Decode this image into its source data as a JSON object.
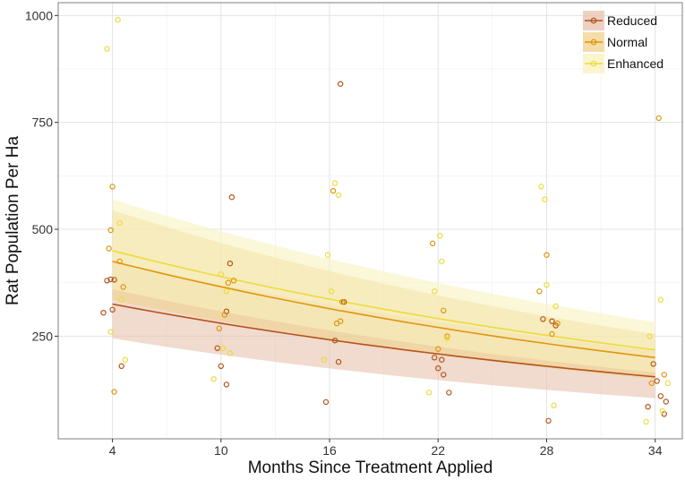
{
  "chart_data": {
    "type": "scatter",
    "title": "",
    "xlabel": "Months Since Treatment Applied",
    "ylabel": "Rat Population Per Ha",
    "xlim": [
      1,
      35.5
    ],
    "ylim": [
      10,
      1030
    ],
    "x_ticks": [
      4,
      10,
      16,
      22,
      28,
      34
    ],
    "x_tick_labels": [
      "4",
      "10",
      "16",
      "22",
      "28",
      "34"
    ],
    "y_ticks": [
      250,
      500,
      750,
      1000
    ],
    "y_tick_labels": [
      "250",
      "500",
      "750",
      "1000"
    ],
    "grid": true,
    "legend_position": "top-right",
    "series": [
      {
        "name": "Reduced",
        "color": "#b5541a",
        "band_color": "#e8c2ae",
        "fit_x": [
          4,
          34
        ],
        "fit_y": [
          325,
          155
        ],
        "band_lower": [
          245,
          105
        ],
        "band_upper": [
          425,
          215
        ],
        "points": [
          [
            3.5,
            305
          ],
          [
            3.7,
            380
          ],
          [
            3.9,
            383
          ],
          [
            4.1,
            382
          ],
          [
            4.0,
            312
          ],
          [
            4.5,
            180
          ],
          [
            9.8,
            222
          ],
          [
            10.0,
            180
          ],
          [
            10.3,
            137
          ],
          [
            10.3,
            308
          ],
          [
            10.5,
            420
          ],
          [
            10.6,
            575
          ],
          [
            15.8,
            96
          ],
          [
            16.3,
            240
          ],
          [
            16.5,
            190
          ],
          [
            16.6,
            840
          ],
          [
            16.8,
            330
          ],
          [
            21.8,
            200
          ],
          [
            22.0,
            175
          ],
          [
            22.2,
            195
          ],
          [
            22.3,
            160
          ],
          [
            22.6,
            118
          ],
          [
            27.8,
            290
          ],
          [
            28.1,
            52
          ],
          [
            28.3,
            285
          ],
          [
            28.5,
            275
          ],
          [
            33.6,
            85
          ],
          [
            33.9,
            185
          ],
          [
            34.1,
            145
          ],
          [
            34.3,
            110
          ],
          [
            34.5,
            68
          ],
          [
            34.6,
            97
          ]
        ]
      },
      {
        "name": "Normal",
        "color": "#e0960e",
        "band_color": "#f0d28c",
        "fit_x": [
          4,
          34
        ],
        "fit_y": [
          425,
          200
        ],
        "band_lower": [
          335,
          150
        ],
        "band_upper": [
          545,
          255
        ],
        "points": [
          [
            3.8,
            455
          ],
          [
            3.9,
            498
          ],
          [
            4.0,
            600
          ],
          [
            4.1,
            120
          ],
          [
            4.4,
            425
          ],
          [
            4.6,
            365
          ],
          [
            9.9,
            268
          ],
          [
            10.2,
            300
          ],
          [
            10.4,
            375
          ],
          [
            10.7,
            380
          ],
          [
            16.2,
            590
          ],
          [
            16.4,
            280
          ],
          [
            16.6,
            285
          ],
          [
            16.7,
            330
          ],
          [
            21.7,
            467
          ],
          [
            22.0,
            220
          ],
          [
            22.3,
            310
          ],
          [
            22.5,
            250
          ],
          [
            27.6,
            355
          ],
          [
            28.0,
            440
          ],
          [
            28.3,
            255
          ],
          [
            28.6,
            280
          ],
          [
            33.8,
            140
          ],
          [
            34.2,
            760
          ],
          [
            34.5,
            160
          ]
        ]
      },
      {
        "name": "Enhanced",
        "color": "#eddb3c",
        "band_color": "#f9f1bf",
        "fit_x": [
          4,
          34
        ],
        "fit_y": [
          450,
          218
        ],
        "band_lower": [
          360,
          165
        ],
        "band_upper": [
          570,
          283
        ],
        "points": [
          [
            3.7,
            922
          ],
          [
            3.9,
            260
          ],
          [
            4.3,
            990
          ],
          [
            4.4,
            515
          ],
          [
            4.7,
            195
          ],
          [
            4.5,
            335
          ],
          [
            9.6,
            150
          ],
          [
            10.1,
            222
          ],
          [
            10.5,
            210
          ],
          [
            10.3,
            355
          ],
          [
            10.0,
            395
          ],
          [
            15.9,
            440
          ],
          [
            16.1,
            355
          ],
          [
            16.3,
            608
          ],
          [
            16.5,
            580
          ],
          [
            15.7,
            195
          ],
          [
            21.5,
            118
          ],
          [
            21.8,
            355
          ],
          [
            22.1,
            485
          ],
          [
            22.2,
            425
          ],
          [
            22.5,
            245
          ],
          [
            27.7,
            600
          ],
          [
            27.9,
            570
          ],
          [
            28.0,
            370
          ],
          [
            28.5,
            320
          ],
          [
            28.4,
            88
          ],
          [
            33.5,
            50
          ],
          [
            33.7,
            250
          ],
          [
            34.3,
            335
          ],
          [
            34.4,
            75
          ],
          [
            34.7,
            140
          ]
        ]
      }
    ]
  }
}
